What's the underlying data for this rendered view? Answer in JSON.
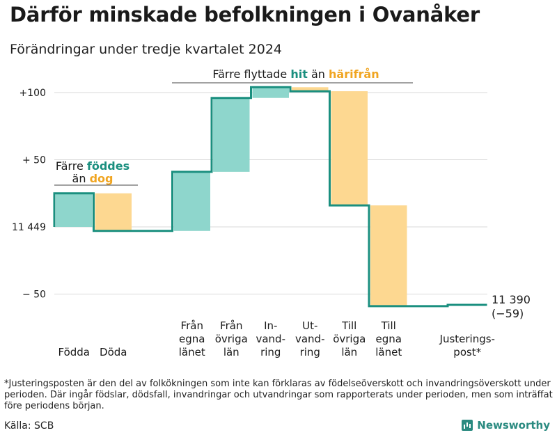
{
  "title": "Därför minskade befolkningen i Ovanåker",
  "subtitle": "Förändringar under tredje kvartalet 2024",
  "colors": {
    "positive": "#8ed6cc",
    "negative": "#fdd891",
    "line": "#1a8f7f",
    "pos_text": "#1a8f7f",
    "neg_text": "#f0a522",
    "grid": "#d9d9d9"
  },
  "chart_data": {
    "type": "waterfall",
    "start_value": 11449,
    "end_value": 11390,
    "change_label": "(−59)",
    "ylim": [
      -65,
      107
    ],
    "y_ticks": [
      {
        "value": 100,
        "label": "+100"
      },
      {
        "value": 50,
        "label": "+ 50"
      },
      {
        "value": 0,
        "label": "11 449"
      },
      {
        "value": -50,
        "label": "−  50"
      }
    ],
    "steps": [
      {
        "label_lines": [
          "Födda"
        ],
        "delta": 25
      },
      {
        "label_lines": [
          "Döda"
        ],
        "delta": -28
      },
      {
        "label_lines": [
          ""
        ],
        "delta": 0
      },
      {
        "label_lines": [
          "Från",
          "egna",
          "länet"
        ],
        "delta": 44
      },
      {
        "label_lines": [
          "Från",
          "övriga",
          "län"
        ],
        "delta": 55
      },
      {
        "label_lines": [
          "In-",
          "vand-",
          "ring"
        ],
        "delta": 8
      },
      {
        "label_lines": [
          "Ut-",
          "vand-",
          "ring"
        ],
        "delta": -3
      },
      {
        "label_lines": [
          "Till",
          "övriga",
          "län"
        ],
        "delta": -85
      },
      {
        "label_lines": [
          "Till",
          "egna",
          "länet"
        ],
        "delta": -75
      },
      {
        "label_lines": [
          ""
        ],
        "delta": 0
      },
      {
        "label_lines": [
          "Justerings-",
          "post*"
        ],
        "delta": 1
      }
    ],
    "annotations": {
      "births": {
        "line1_pre": "Färre ",
        "line1_hl": "föddes",
        "line2_pre": "än ",
        "line2_hl": "dog"
      },
      "migration": {
        "pre": "Färre flyttade ",
        "hl1": "hit",
        "mid": " än ",
        "hl2": "härifrån"
      }
    },
    "end_label": "11 390"
  },
  "footnote": "*Justeringsposten är den del av folkökningen som inte kan förklaras av födelseöverskott och invandringsöverskott under perioden. Där ingår födslar, dödsfall, invandringar och utvandringar som rapporterats under perioden, men som inträffat före periodens början.",
  "source": "Källa: SCB",
  "brand": "Newsworthy"
}
